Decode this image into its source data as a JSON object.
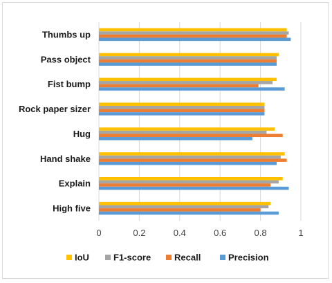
{
  "chart_data": {
    "type": "bar",
    "orientation": "horizontal",
    "categories": [
      "Thumbs up",
      "Pass object",
      "Fist bump",
      "Rock paper sizer",
      "Hug",
      "Hand shake",
      "Explain",
      "High five"
    ],
    "series": [
      {
        "name": "IoU",
        "color": "#ffc000",
        "values": [
          0.93,
          0.89,
          0.88,
          0.82,
          0.87,
          0.92,
          0.91,
          0.85
        ]
      },
      {
        "name": "F1-score",
        "color": "#a5a5a5",
        "values": [
          0.94,
          0.88,
          0.86,
          0.82,
          0.83,
          0.9,
          0.89,
          0.84
        ]
      },
      {
        "name": "Recall",
        "color": "#ed7d31",
        "values": [
          0.93,
          0.88,
          0.79,
          0.82,
          0.91,
          0.93,
          0.85,
          0.8
        ]
      },
      {
        "name": "Precision",
        "color": "#5b9bd5",
        "values": [
          0.95,
          0.88,
          0.92,
          0.82,
          0.76,
          0.88,
          0.94,
          0.89
        ]
      }
    ],
    "xlim": [
      0,
      1
    ],
    "xticks": [
      "0",
      "0.2",
      "0.4",
      "0.6",
      "0.8",
      "1"
    ],
    "xtick_values": [
      0,
      0.2,
      0.4,
      0.6,
      0.8,
      1
    ],
    "grid": "vertical",
    "legend": "bottom",
    "title": "",
    "xlabel": "",
    "ylabel": ""
  }
}
